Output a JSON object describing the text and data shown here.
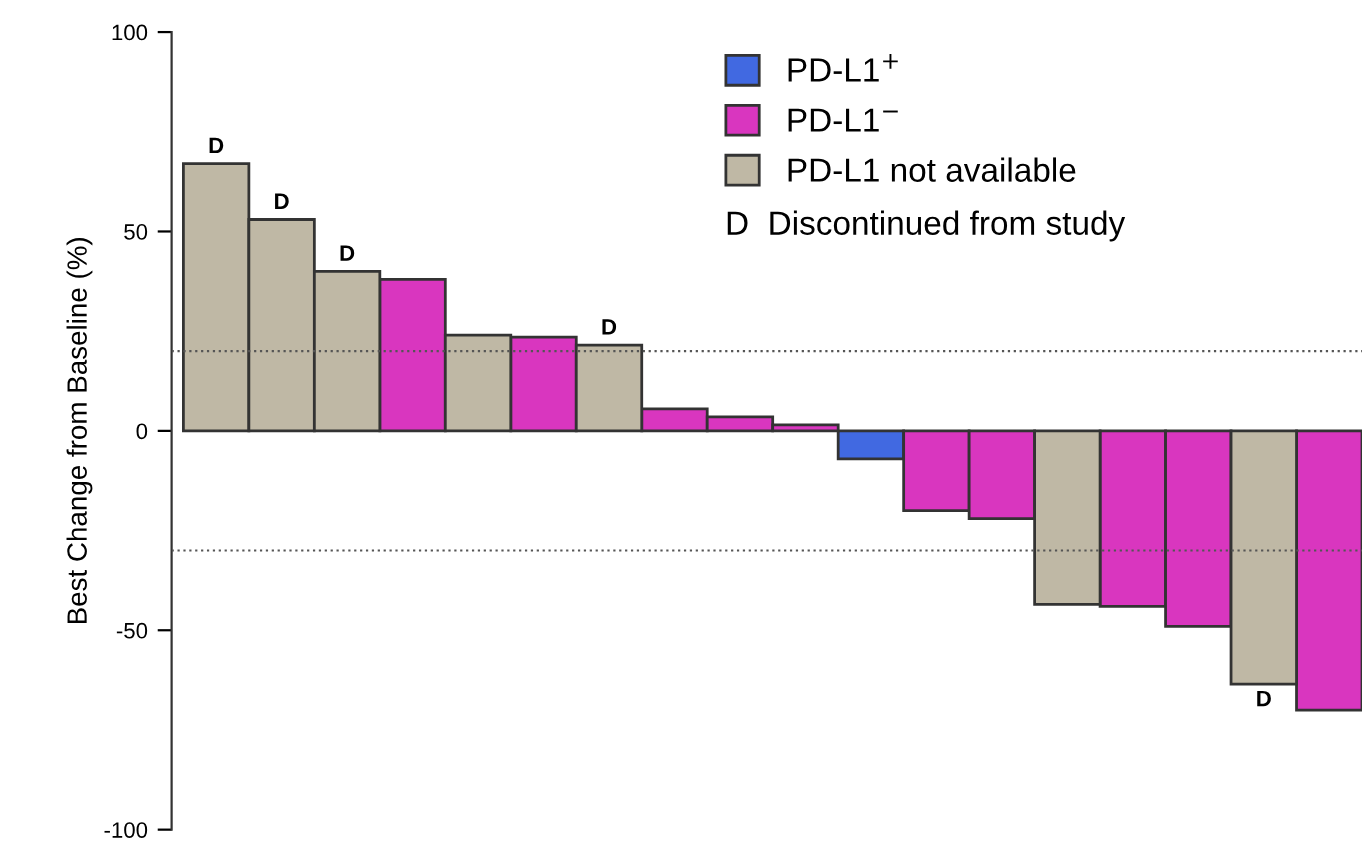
{
  "chart_data": {
    "type": "bar",
    "ylabel": "Best Change from Baseline (%)",
    "categories": [
      null,
      null,
      null,
      null,
      null,
      null,
      null,
      null,
      null,
      null,
      null,
      null,
      null,
      null,
      null,
      null,
      null,
      null
    ],
    "series": [
      {
        "name": "PD-L1$^{+}$",
        "color": "#4169e1",
        "values": [
          null,
          null,
          null,
          null,
          null,
          null,
          null,
          null,
          null,
          null,
          -7,
          null,
          null,
          null,
          null,
          null,
          null,
          null
        ],
        "value_labels": [
          null,
          null,
          null,
          null,
          null,
          null,
          null,
          null,
          null,
          null,
          null,
          null,
          null,
          null,
          null,
          null,
          null,
          null
        ]
      },
      {
        "name": "PD-L1$^{−}$",
        "color": "#d936bf",
        "values": [
          null,
          null,
          null,
          38,
          null,
          23.5,
          null,
          5.5,
          3.5,
          1.5,
          null,
          -20,
          -22,
          null,
          -44,
          -49,
          null,
          -70
        ],
        "value_labels": [
          null,
          null,
          null,
          null,
          null,
          null,
          null,
          null,
          null,
          null,
          null,
          null,
          null,
          null,
          null,
          null,
          null,
          null
        ]
      },
      {
        "name": "PD-L1 not available",
        "color": "#bfb8a5",
        "values": [
          67,
          53,
          40,
          null,
          24,
          null,
          21.5,
          null,
          null,
          null,
          null,
          null,
          null,
          -43.5,
          null,
          null,
          -63.5,
          null
        ],
        "value_labels": [
          "D",
          "D",
          "D",
          null,
          null,
          null,
          "D",
          null,
          null,
          null,
          null,
          null,
          null,
          null,
          null,
          null,
          "D",
          null
        ]
      }
    ],
    "ylim": [
      -100,
      100
    ],
    "yticks": [
      -100,
      -50,
      0,
      50,
      100
    ],
    "grid": false,
    "legend": "top right",
    "ref_lines": [
      {
        "axis": "y",
        "value": 20,
        "line_style": "dotted",
        "color": "#555555"
      },
      {
        "axis": "y",
        "value": -30,
        "line_style": "dotted",
        "color": "#555555"
      }
    ],
    "annotations": [
      "D  Discontinued from study"
    ]
  }
}
